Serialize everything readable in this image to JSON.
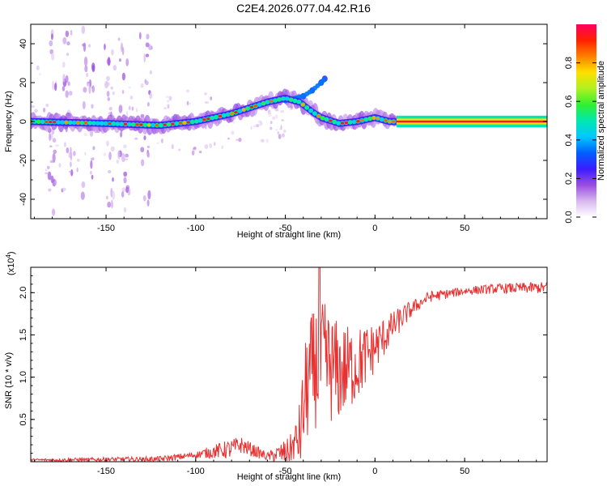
{
  "title": "C2E4.2026.077.04.42.R16",
  "chart_data": [
    {
      "type": "heatmap",
      "name": "spectrogram",
      "xlabel": "Height of straight line (km)",
      "ylabel": "Frequency (Hz)",
      "xlim": [
        -192,
        96
      ],
      "ylim": [
        -50,
        50
      ],
      "x_ticks": [
        -150,
        -100,
        -50,
        0,
        50
      ],
      "y_ticks": [
        -40,
        -20,
        0,
        20,
        40
      ],
      "colorbar": {
        "label": "Normalized spectral amplitude",
        "range": [
          0,
          1
        ],
        "ticks": [
          0.0,
          0.2,
          0.4,
          0.6,
          0.8
        ],
        "colors": [
          "#ffffff",
          "#d8b8f0",
          "#9a4de0",
          "#3a1cff",
          "#0060ff",
          "#00c8ff",
          "#00e8b0",
          "#30f030",
          "#b0f020",
          "#ffe000",
          "#ff8000",
          "#ff2000",
          "#ff0060"
        ]
      },
      "ridge": [
        {
          "x": -192,
          "f": 0
        },
        {
          "x": -150,
          "f": -1
        },
        {
          "x": -120,
          "f": -2
        },
        {
          "x": -100,
          "f": 0
        },
        {
          "x": -90,
          "f": 2
        },
        {
          "x": -80,
          "f": 4
        },
        {
          "x": -70,
          "f": 7
        },
        {
          "x": -60,
          "f": 10
        },
        {
          "x": -50,
          "f": 12
        },
        {
          "x": -42,
          "f": 10
        },
        {
          "x": -35,
          "f": 5
        },
        {
          "x": -30,
          "f": 2
        },
        {
          "x": -20,
          "f": -1
        },
        {
          "x": -10,
          "f": 0
        },
        {
          "x": 0,
          "f": 2
        },
        {
          "x": 8,
          "f": 0
        },
        {
          "x": 12,
          "f": 0
        },
        {
          "x": 96,
          "f": 0
        }
      ],
      "secondary_ridge": [
        {
          "x": -50,
          "f": 11
        },
        {
          "x": -40,
          "f": 13
        },
        {
          "x": -35,
          "f": 16
        },
        {
          "x": -30,
          "f": 20
        },
        {
          "x": -28,
          "f": 22
        }
      ]
    },
    {
      "type": "line",
      "name": "snr",
      "xlabel": "Height of straight line (km)",
      "ylabel": "SNR (10 * v/v)",
      "scale_label": "(x10",
      "scale_exponent": "4",
      "color": "#e83030",
      "xlim": [
        -192,
        96
      ],
      "ylim": [
        0,
        2.3
      ],
      "x_ticks": [
        -150,
        -100,
        -50,
        0,
        50
      ],
      "y_ticks": [
        0.5,
        1.0,
        1.5,
        2.0
      ],
      "y_tick_labels": [
        "0.5",
        "1.0",
        "1.5",
        "2.0"
      ],
      "envelope": [
        {
          "x": -192,
          "y": 0.02
        },
        {
          "x": -120,
          "y": 0.03
        },
        {
          "x": -100,
          "y": 0.08
        },
        {
          "x": -90,
          "y": 0.12
        },
        {
          "x": -80,
          "y": 0.15
        },
        {
          "x": -75,
          "y": 0.2
        },
        {
          "x": -60,
          "y": 0.06
        },
        {
          "x": -48,
          "y": 0.12
        },
        {
          "x": -42,
          "y": 0.3
        },
        {
          "x": -38,
          "y": 0.9
        },
        {
          "x": -34,
          "y": 1.1
        },
        {
          "x": -30,
          "y": 1.2
        },
        {
          "x": -20,
          "y": 1.05
        },
        {
          "x": -10,
          "y": 1.15
        },
        {
          "x": 0,
          "y": 1.35
        },
        {
          "x": 10,
          "y": 1.6
        },
        {
          "x": 20,
          "y": 1.8
        },
        {
          "x": 30,
          "y": 1.95
        },
        {
          "x": 50,
          "y": 2.02
        },
        {
          "x": 70,
          "y": 2.05
        },
        {
          "x": 96,
          "y": 2.06
        }
      ],
      "noise": [
        {
          "x": -192,
          "a": 0.015
        },
        {
          "x": -100,
          "a": 0.04
        },
        {
          "x": -80,
          "a": 0.12
        },
        {
          "x": -60,
          "a": 0.05
        },
        {
          "x": -45,
          "a": 0.2
        },
        {
          "x": -38,
          "a": 0.7
        },
        {
          "x": -30,
          "a": 0.75
        },
        {
          "x": -20,
          "a": 0.6
        },
        {
          "x": -10,
          "a": 0.45
        },
        {
          "x": 0,
          "a": 0.3
        },
        {
          "x": 10,
          "a": 0.18
        },
        {
          "x": 25,
          "a": 0.07
        },
        {
          "x": 50,
          "a": 0.05
        },
        {
          "x": 96,
          "a": 0.07
        }
      ],
      "peak": {
        "x": -31,
        "y": 2.3
      }
    }
  ]
}
